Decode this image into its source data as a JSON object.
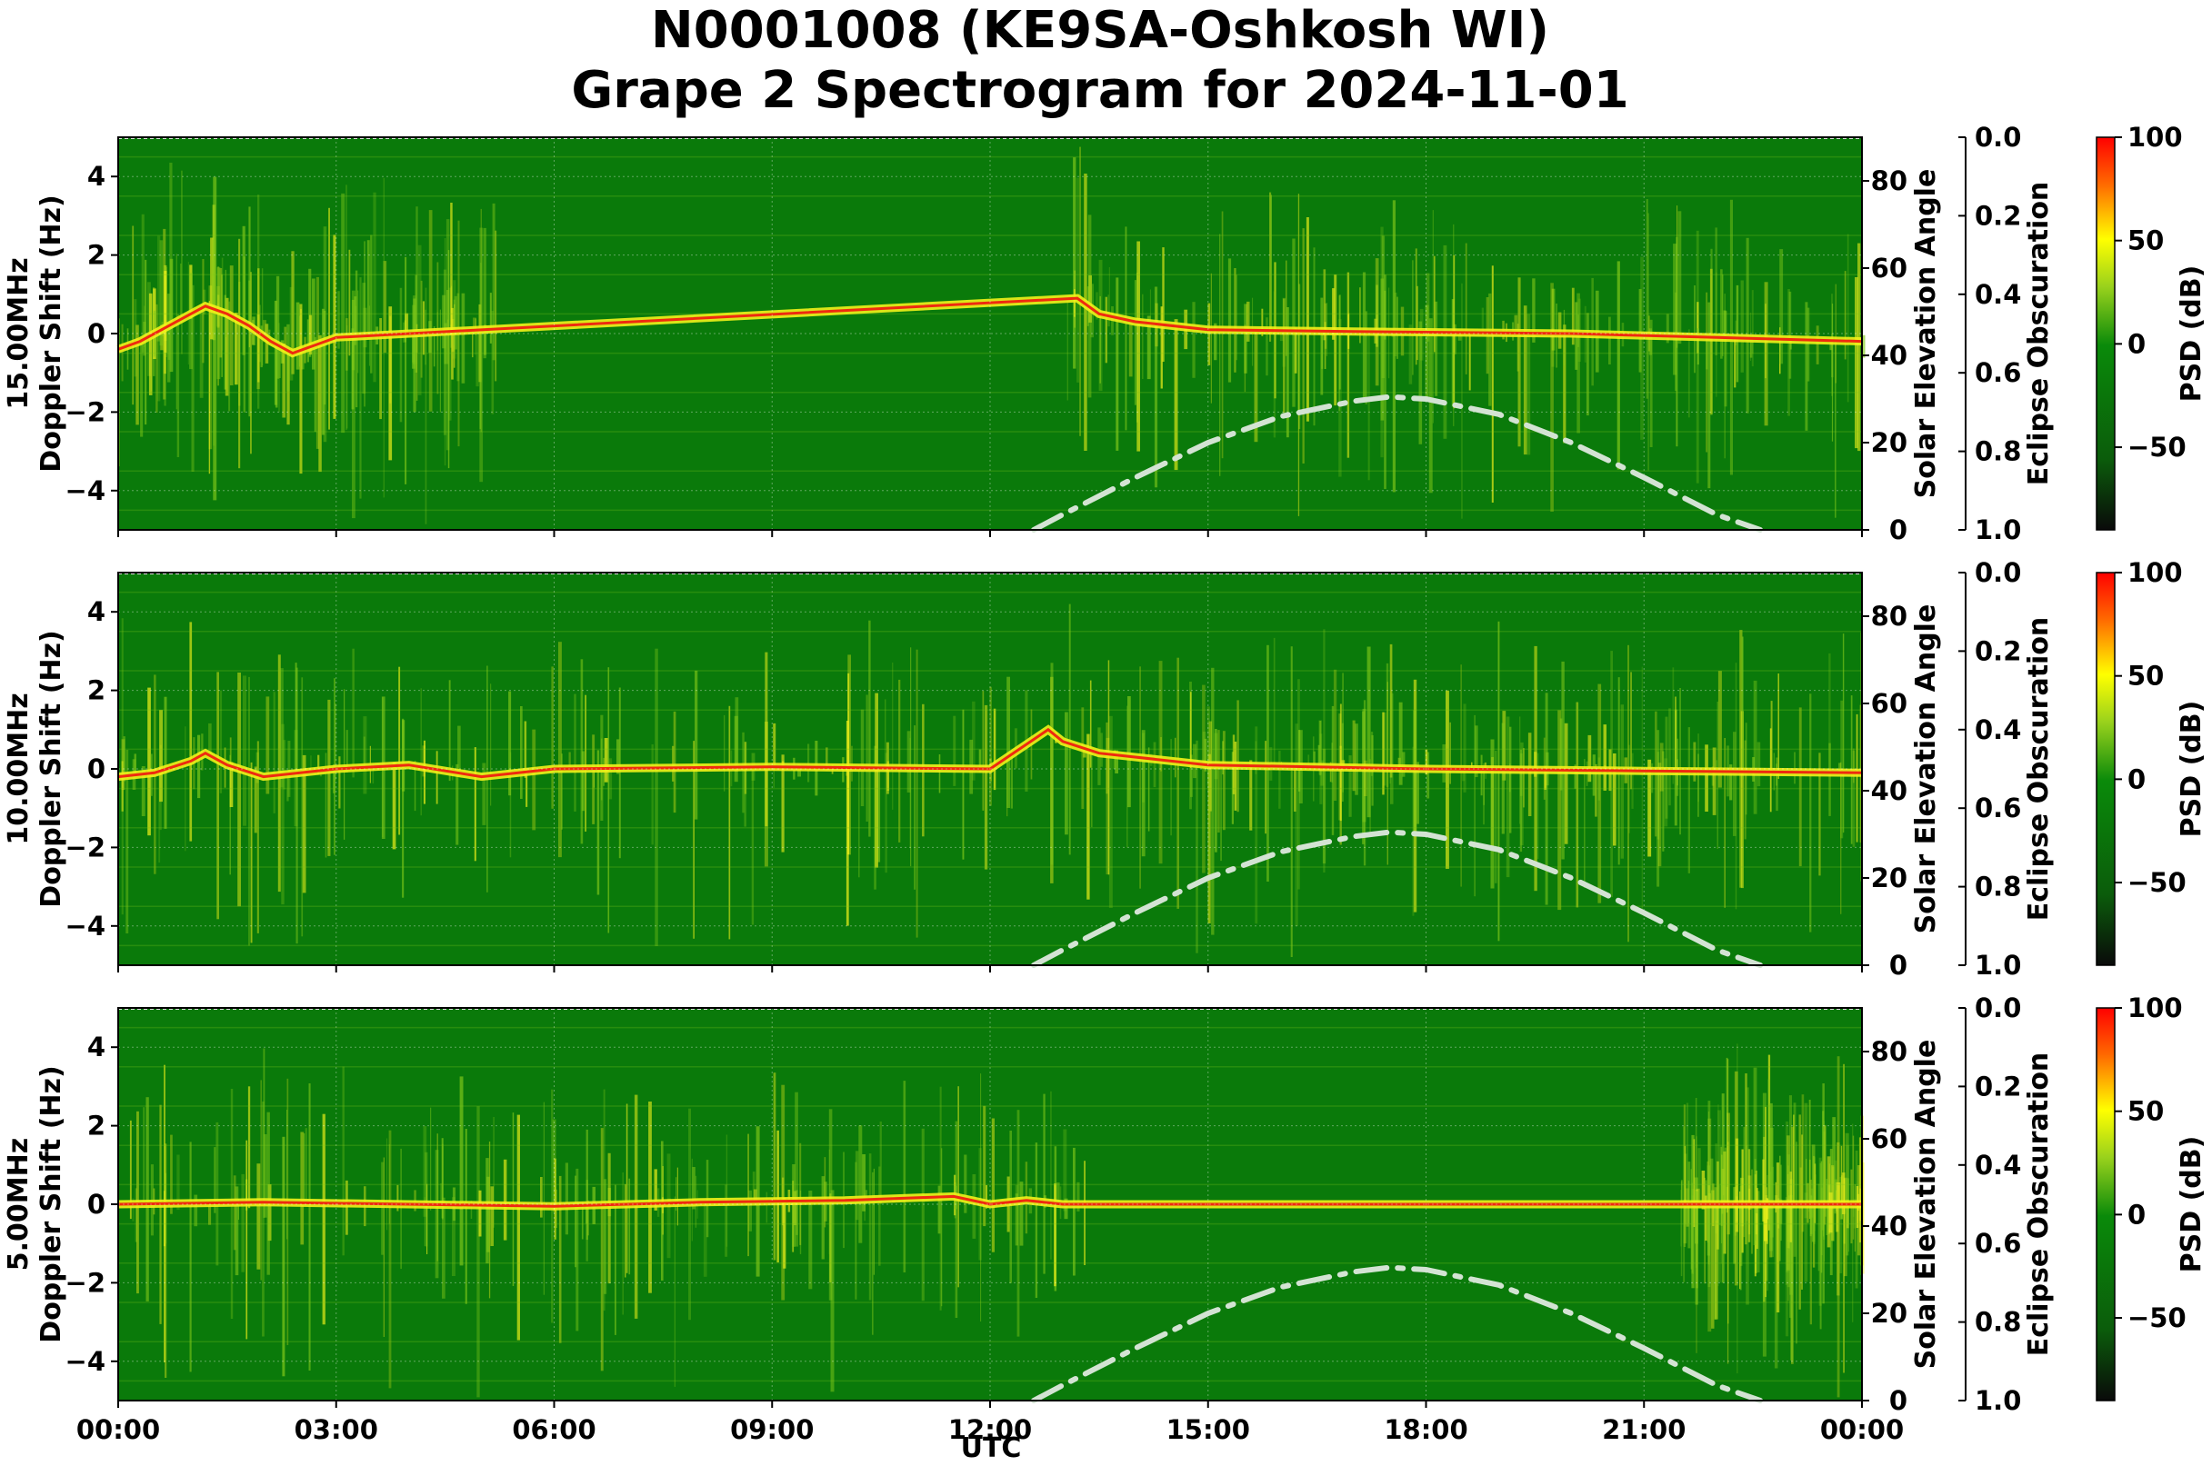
{
  "figure": {
    "title_line1": "N0001008 (KE9SA-Oshkosh WI)",
    "title_line2": "Grape 2 Spectrogram for 2024-11-01",
    "xlabel": "UTC"
  },
  "chart_data": [
    {
      "type": "heatmap",
      "frequency_label": "15.00MHz",
      "ylabel": "15.00MHz\nDoppler Shift (Hz)",
      "y2label": "Solar Elevation Angle",
      "y3label": "Eclipse Obscuration",
      "colorbar_label": "PSD (dB)",
      "x_ticks": [
        "00:00",
        "03:00",
        "06:00",
        "09:00",
        "12:00",
        "15:00",
        "18:00",
        "21:00",
        "00:00"
      ],
      "xlim_hours": [
        0,
        24
      ],
      "ylim": [
        -5,
        5
      ],
      "y_ticks": [
        4,
        2,
        0,
        -2,
        -4
      ],
      "y2lim": [
        0,
        90
      ],
      "y2_ticks": [
        0,
        20,
        40,
        60,
        80
      ],
      "y3lim": [
        1.0,
        0.0
      ],
      "y3_ticks": [
        "0.0",
        "0.2",
        "0.4",
        "0.6",
        "0.8",
        "1.0"
      ],
      "clim": [
        -90,
        100
      ],
      "cbar_ticks": [
        100,
        50,
        0,
        -50
      ],
      "solar_elevation": {
        "x_hours": [
          12.6,
          13,
          14,
          15,
          16,
          17,
          17.5,
          18,
          19,
          20,
          21,
          22,
          22.6
        ],
        "y_deg": [
          0,
          3.5,
          12,
          20,
          26,
          29.5,
          30.5,
          30,
          26.5,
          20,
          12,
          3.5,
          0
        ]
      },
      "carrier_trace": {
        "x_hours": [
          0,
          0.3,
          0.6,
          0.9,
          1.2,
          1.5,
          1.8,
          2.1,
          2.4,
          2.7,
          3.0,
          13.2,
          13.5,
          14,
          15,
          17,
          20,
          22,
          24
        ],
        "y_hz": [
          -0.4,
          -0.2,
          0.1,
          0.4,
          0.7,
          0.5,
          0.2,
          -0.2,
          -0.5,
          -0.3,
          -0.1,
          0.9,
          0.5,
          0.3,
          0.1,
          0.05,
          0.0,
          -0.1,
          -0.2
        ]
      }
    },
    {
      "type": "heatmap",
      "frequency_label": "10.00MHz",
      "ylabel": "10.00MHz\nDoppler Shift (Hz)",
      "y2label": "Solar Elevation Angle",
      "y3label": "Eclipse Obscuration",
      "colorbar_label": "PSD (dB)",
      "x_ticks": [
        "00:00",
        "03:00",
        "06:00",
        "09:00",
        "12:00",
        "15:00",
        "18:00",
        "21:00",
        "00:00"
      ],
      "xlim_hours": [
        0,
        24
      ],
      "ylim": [
        -5,
        5
      ],
      "y_ticks": [
        4,
        2,
        0,
        -2,
        -4
      ],
      "y2lim": [
        0,
        90
      ],
      "y2_ticks": [
        0,
        20,
        40,
        60,
        80
      ],
      "y3lim": [
        1.0,
        0.0
      ],
      "y3_ticks": [
        "0.0",
        "0.2",
        "0.4",
        "0.6",
        "0.8",
        "1.0"
      ],
      "clim": [
        -90,
        100
      ],
      "cbar_ticks": [
        100,
        50,
        0,
        -50
      ],
      "solar_elevation": {
        "x_hours": [
          12.6,
          13,
          14,
          15,
          16,
          17,
          17.5,
          18,
          19,
          20,
          21,
          22,
          22.6
        ],
        "y_deg": [
          0,
          3.5,
          12,
          20,
          26,
          29.5,
          30.5,
          30,
          26.5,
          20,
          12,
          3.5,
          0
        ]
      },
      "carrier_trace": {
        "x_hours": [
          0,
          0.5,
          1.0,
          1.2,
          1.5,
          2.0,
          3.0,
          4.0,
          5.0,
          6.0,
          9.0,
          12.0,
          12.8,
          13.0,
          13.5,
          15,
          18,
          21,
          24
        ],
        "y_hz": [
          -0.2,
          -0.1,
          0.2,
          0.4,
          0.1,
          -0.2,
          0.0,
          0.1,
          -0.2,
          0.0,
          0.05,
          0.0,
          1.0,
          0.7,
          0.4,
          0.1,
          0.0,
          -0.05,
          -0.1
        ]
      }
    },
    {
      "type": "heatmap",
      "frequency_label": "5.00MHz",
      "ylabel": "5.00MHz\nDoppler Shift (Hz)",
      "y2label": "Solar Elevation Angle",
      "y3label": "Eclipse Obscuration",
      "colorbar_label": "PSD (dB)",
      "x_ticks": [
        "00:00",
        "03:00",
        "06:00",
        "09:00",
        "12:00",
        "15:00",
        "18:00",
        "21:00",
        "00:00"
      ],
      "xlim_hours": [
        0,
        24
      ],
      "ylim": [
        -5,
        5
      ],
      "y_ticks": [
        4,
        2,
        0,
        -2,
        -4
      ],
      "y2lim": [
        0,
        90
      ],
      "y2_ticks": [
        0,
        20,
        40,
        60,
        80
      ],
      "y3lim": [
        1.0,
        0.0
      ],
      "y3_ticks": [
        "0.0",
        "0.2",
        "0.4",
        "0.6",
        "0.8",
        "1.0"
      ],
      "clim": [
        -90,
        100
      ],
      "cbar_ticks": [
        100,
        50,
        0,
        -50
      ],
      "solar_elevation": {
        "x_hours": [
          12.6,
          13,
          14,
          15,
          16,
          17,
          17.5,
          18,
          19,
          20,
          21,
          22,
          22.6
        ],
        "y_deg": [
          0,
          3.5,
          12,
          20,
          26,
          29.5,
          30.5,
          30,
          26.5,
          20,
          12,
          3.5,
          0
        ]
      },
      "carrier_trace": {
        "x_hours": [
          0,
          2,
          4,
          6,
          8,
          10,
          11.5,
          12,
          12.5,
          13,
          14,
          24
        ],
        "y_hz": [
          0.0,
          0.05,
          0.0,
          -0.05,
          0.05,
          0.1,
          0.2,
          0.0,
          0.1,
          0.0,
          0.0,
          0.0
        ]
      }
    }
  ],
  "colors": {
    "background_green": "#0a7a0a",
    "noise_light": "#7fc81a",
    "signal_yellow": "#f2f21a",
    "signal_red": "#ee2a10",
    "solar_curve": "#d3e3d3",
    "cmap_stops": [
      "#0a0a0a",
      "#0b5c0b",
      "#0a8a0a",
      "#9ad21c",
      "#ffff00",
      "#ff6a00",
      "#ff0000"
    ]
  }
}
